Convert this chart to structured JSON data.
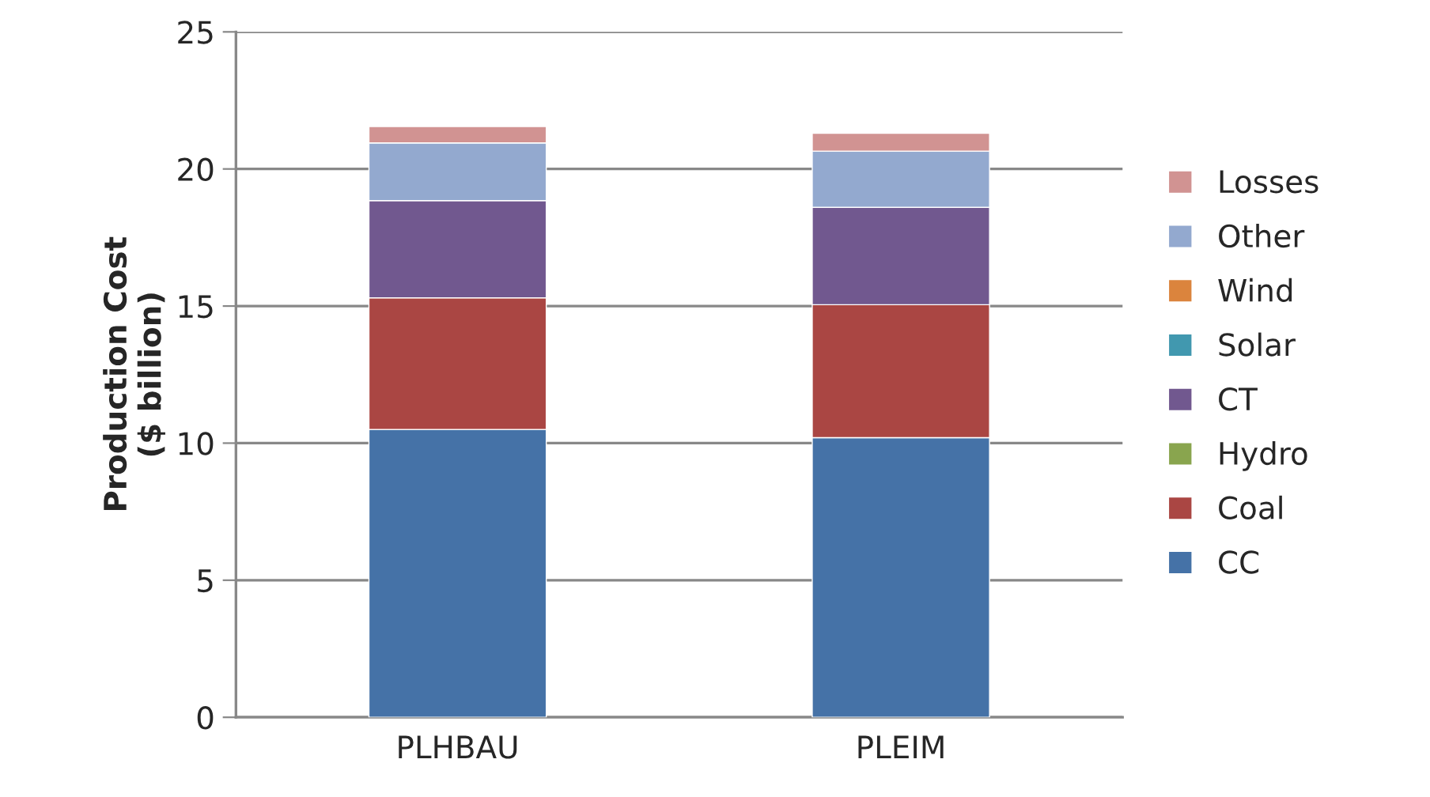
{
  "chart_data": {
    "type": "bar",
    "stacked": true,
    "ylabel": "Production Cost\n($ billion)",
    "categories": [
      "PLHBAU",
      "PLEIM"
    ],
    "series": [
      {
        "name": "CC",
        "color": "#4572a7",
        "values": [
          10.5,
          10.2
        ]
      },
      {
        "name": "Coal",
        "color": "#aa4643",
        "values": [
          4.8,
          4.85
        ]
      },
      {
        "name": "Hydro",
        "color": "#89a54e",
        "values": [
          0,
          0
        ]
      },
      {
        "name": "CT",
        "color": "#71588f",
        "values": [
          3.55,
          3.55
        ]
      },
      {
        "name": "Solar",
        "color": "#4198af",
        "values": [
          0,
          0
        ]
      },
      {
        "name": "Wind",
        "color": "#db843d",
        "values": [
          0,
          0
        ]
      },
      {
        "name": "Other",
        "color": "#93a9cf",
        "values": [
          2.1,
          2.05
        ]
      },
      {
        "name": "Losses",
        "color": "#d19392",
        "values": [
          0.6,
          0.65
        ]
      }
    ],
    "ylim": [
      0,
      25
    ],
    "yticks": [
      0,
      5,
      10,
      15,
      20,
      25
    ],
    "grid": "y",
    "legend": "right"
  }
}
